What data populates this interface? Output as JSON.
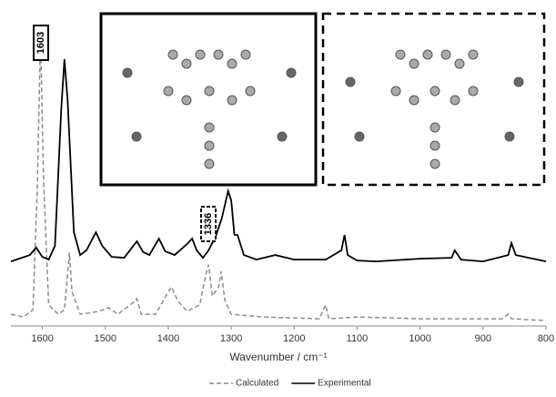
{
  "chart_data": {
    "type": "line",
    "x_label": "Wavenumber / cm⁻¹",
    "xlim": [
      1650,
      800
    ],
    "xticks": [
      1600,
      1500,
      1400,
      1300,
      1200,
      1100,
      1000,
      900,
      800
    ],
    "ylim": [
      0,
      100
    ],
    "legend": "bottom",
    "annotations": [
      "1603",
      "1336"
    ],
    "series": [
      {
        "name": "Calculated",
        "color": "#8c8c8c",
        "dashed": true,
        "x": [
          1650,
          1630,
          1615,
          1608,
          1603,
          1598,
          1590,
          1575,
          1565,
          1560,
          1557,
          1553,
          1540,
          1510,
          1495,
          1480,
          1455,
          1450,
          1443,
          1420,
          1400,
          1395,
          1385,
          1370,
          1350,
          1340,
          1336,
          1330,
          1320,
          1316,
          1310,
          1300,
          1250,
          1160,
          1150,
          1145,
          1100,
          1000,
          870,
          860,
          855,
          800
        ],
        "values": [
          4.5,
          3.6,
          6,
          48,
          97,
          48,
          7.6,
          4.5,
          6,
          18,
          25,
          12,
          4.5,
          5.5,
          6.7,
          4.5,
          8.5,
          9.7,
          4.5,
          4.5,
          12,
          13.6,
          9,
          5.5,
          7.6,
          18,
          21,
          10.6,
          13.6,
          18.8,
          9,
          4.5,
          3.6,
          3,
          7.6,
          3,
          3.6,
          3,
          3,
          4.5,
          3,
          2.4
        ]
      },
      {
        "name": "Experimental",
        "color": "#000000",
        "dashed": false,
        "x": [
          1650,
          1620,
          1610,
          1600,
          1590,
          1580,
          1570,
          1565,
          1560,
          1550,
          1540,
          1530,
          1515,
          1505,
          1490,
          1470,
          1450,
          1440,
          1430,
          1415,
          1405,
          1390,
          1370,
          1362,
          1355,
          1345,
          1336,
          1325,
          1315,
          1305,
          1300,
          1295,
          1290,
          1280,
          1260,
          1230,
          1200,
          1150,
          1125,
          1120,
          1115,
          1100,
          1070,
          1000,
          950,
          945,
          935,
          900,
          860,
          855,
          848,
          800
        ],
        "values": [
          22.1,
          24.2,
          26.7,
          23.6,
          22.7,
          27.3,
          72.7,
          89.4,
          75.8,
          31.8,
          24.2,
          25.8,
          31.8,
          27.3,
          23.6,
          23.3,
          28.8,
          25.2,
          24.2,
          29.7,
          25.5,
          24.2,
          27.9,
          29.7,
          25.8,
          23.3,
          25.8,
          30.3,
          36.4,
          45.5,
          42.4,
          30.9,
          30.9,
          24.2,
          22.7,
          24.2,
          22.7,
          22.7,
          25.8,
          30.9,
          24.2,
          22.4,
          22.1,
          23,
          23.3,
          25.8,
          22.7,
          22.1,
          24.2,
          28.2,
          24.2,
          22.1
        ]
      }
    ]
  }
}
